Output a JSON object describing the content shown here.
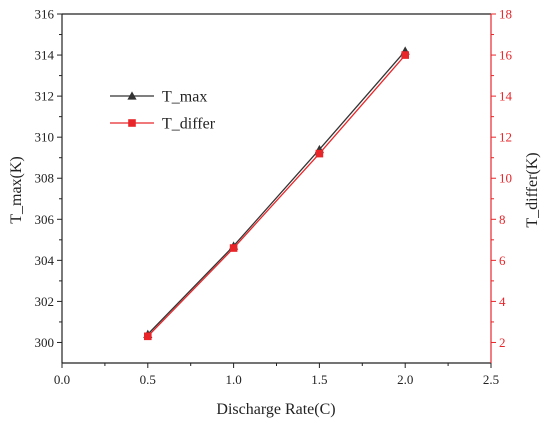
{
  "chart_data": {
    "type": "line",
    "title": "",
    "xlabel": "Discharge Rate(C)",
    "ylabel_left": "T_max(K)",
    "ylabel_right": "T_differ(K)",
    "xlim": [
      0.0,
      2.5
    ],
    "ylim_left": [
      299,
      316
    ],
    "ylim_right": [
      1,
      18
    ],
    "x_ticks": [
      0.0,
      0.5,
      1.0,
      1.5,
      2.0,
      2.5
    ],
    "x_tick_labels": [
      "0.0",
      "0.5",
      "1.0",
      "1.5",
      "2.0",
      "2.5"
    ],
    "y_left_ticks": [
      300,
      302,
      304,
      306,
      308,
      310,
      312,
      314,
      316
    ],
    "y_right_ticks": [
      2,
      4,
      6,
      8,
      10,
      12,
      14,
      16,
      18
    ],
    "grid": false,
    "legend_position": "upper-left",
    "series": [
      {
        "name": "T_max",
        "axis": "left",
        "marker": "triangle",
        "color": "#333333",
        "x": [
          0.5,
          1.0,
          1.5,
          2.0
        ],
        "values": [
          300.4,
          304.7,
          309.4,
          314.2
        ]
      },
      {
        "name": "T_differ",
        "axis": "right",
        "marker": "square",
        "color": "#e8262a",
        "x": [
          0.5,
          1.0,
          1.5,
          2.0
        ],
        "values": [
          2.3,
          6.6,
          11.2,
          16.0
        ]
      }
    ],
    "right_axis_color": "#e8262a"
  }
}
